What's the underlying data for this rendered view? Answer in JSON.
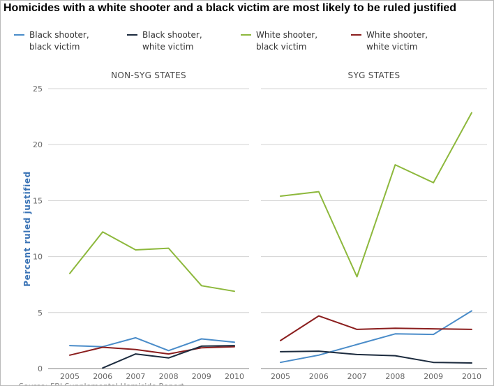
{
  "chart_data": {
    "type": "line",
    "title": "Homicides with a white shooter and a black victim are most likely to be ruled justified",
    "ylabel": "Percent ruled justified",
    "xlabel": "",
    "ylim": [
      0,
      25
    ],
    "yticks": [
      0,
      5,
      10,
      15,
      20,
      25
    ],
    "x": [
      "2005",
      "2006",
      "2007",
      "2008",
      "2009",
      "2010"
    ],
    "grid": true,
    "legend_position": "top",
    "source": "Source: FBI Supplemental Homicide Report",
    "legend": [
      {
        "key": "bb",
        "line1": "Black shooter,",
        "line2": "black victim"
      },
      {
        "key": "bw",
        "line1": "Black shooter,",
        "line2": "white victim"
      },
      {
        "key": "wb",
        "line1": "White shooter,",
        "line2": "black victim"
      },
      {
        "key": "ww",
        "line1": "White shooter,",
        "line2": "white victim"
      }
    ],
    "colors": {
      "bb": "#4a8cc9",
      "bw": "#1c2b3e",
      "wb": "#8db83c",
      "ww": "#8b1e1e"
    },
    "panels": [
      {
        "name": "NON-SYG STATES",
        "series": [
          {
            "key": "bb",
            "values": [
              2.05,
              1.95,
              2.75,
              1.6,
              2.65,
              2.35
            ]
          },
          {
            "key": "bw",
            "values": [
              null,
              0.05,
              1.3,
              0.95,
              2.0,
              2.05
            ]
          },
          {
            "key": "wb",
            "values": [
              8.5,
              12.2,
              10.6,
              10.75,
              7.4,
              6.9
            ]
          },
          {
            "key": "ww",
            "values": [
              1.2,
              1.9,
              1.7,
              1.3,
              1.85,
              1.95
            ]
          }
        ]
      },
      {
        "name": "SYG STATES",
        "series": [
          {
            "key": "bb",
            "values": [
              0.55,
              1.2,
              2.15,
              3.1,
              3.05,
              5.15
            ]
          },
          {
            "key": "bw",
            "values": [
              1.5,
              1.55,
              1.25,
              1.15,
              0.55,
              0.5
            ]
          },
          {
            "key": "wb",
            "values": [
              15.4,
              15.8,
              8.2,
              18.2,
              16.6,
              22.85
            ]
          },
          {
            "key": "ww",
            "values": [
              2.5,
              4.7,
              3.5,
              3.6,
              3.55,
              3.5
            ]
          }
        ]
      }
    ]
  }
}
